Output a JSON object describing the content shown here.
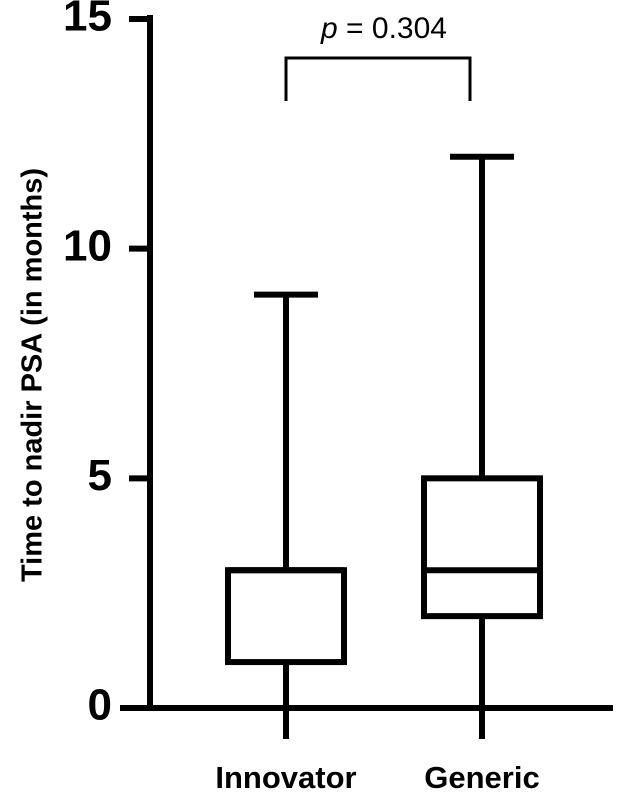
{
  "chart_data": {
    "type": "box",
    "ylabel": "Time to nadir PSA (in months)",
    "ylim": [
      0,
      15
    ],
    "yticks": [
      0,
      5,
      10,
      15
    ],
    "ytick_labels": [
      "0",
      "5",
      "10",
      "15"
    ],
    "categories": [
      "Innovator",
      "Generic"
    ],
    "boxes": [
      {
        "category": "Innovator",
        "min": 0,
        "q1": 1,
        "median": 3,
        "q3": 3,
        "max": 9
      },
      {
        "category": "Generic",
        "min": 0,
        "q1": 2,
        "median": 3,
        "q3": 5,
        "max": 12
      }
    ],
    "annotation": {
      "p_symbol": "p",
      "p_text": " = 0.304",
      "bracket_from": "Innovator",
      "bracket_to": "Generic"
    },
    "colors": {
      "line": "#000000",
      "box_fill": "#ffffff"
    },
    "grid": false
  }
}
